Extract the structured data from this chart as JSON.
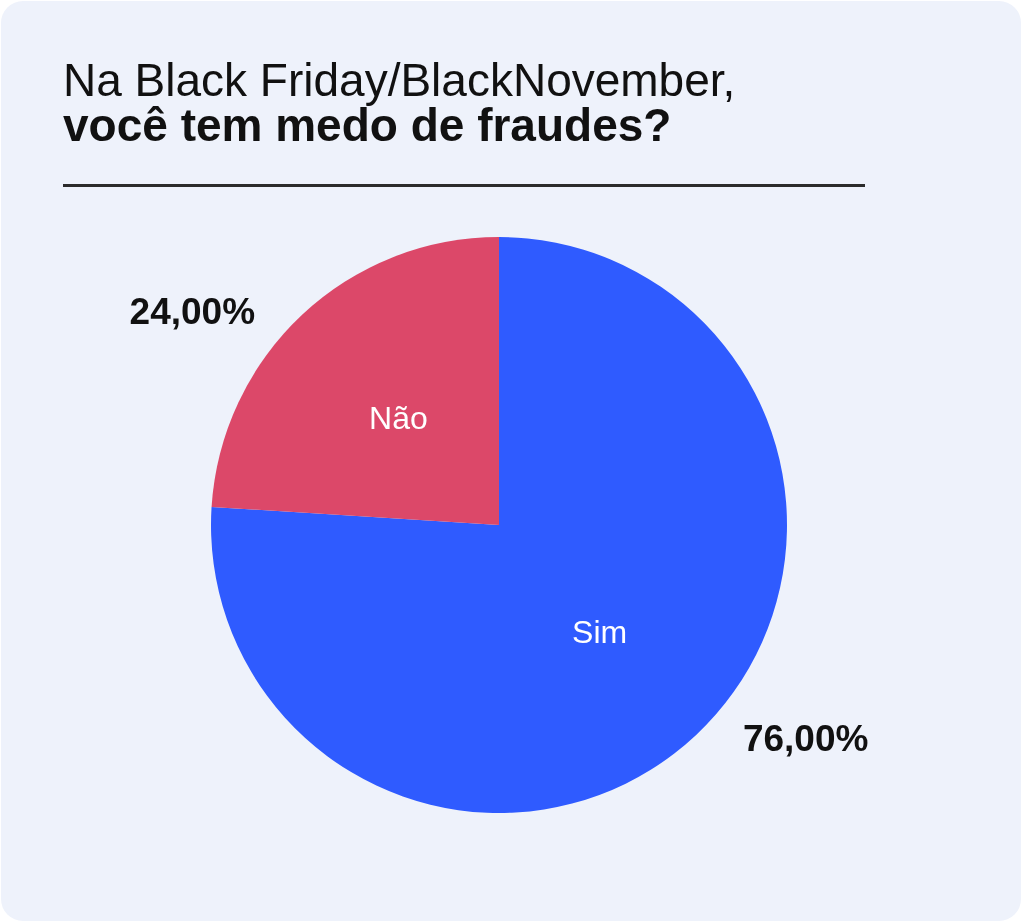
{
  "chart_data": {
    "type": "pie",
    "title": "Na Black Friday/BlackNovember,\nvocê tem medo de fraudes?",
    "categories": [
      "Sim",
      "Não"
    ],
    "values": [
      76,
      24
    ],
    "colors": [
      "#2f5bff",
      "#dc4869"
    ],
    "value_labels": [
      "76,00%",
      "24,00%"
    ]
  }
}
